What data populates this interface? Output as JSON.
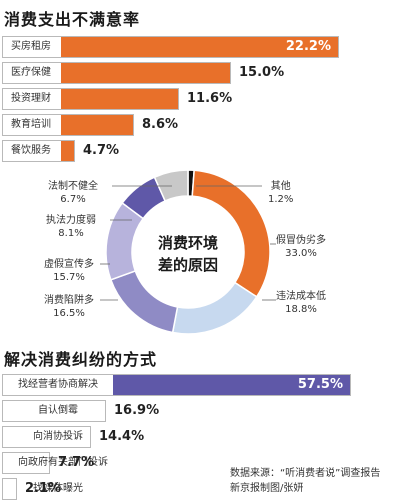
{
  "colors": {
    "orange": "#e8702a",
    "orange_light": "#f2a66f",
    "purple": "#5f58a8",
    "purple_light": "#8f8bc5"
  },
  "titles": {
    "top": "消费支出不满意率",
    "center_line1": "消费环境",
    "center_line2": "差的原因",
    "bottom": "解决消费纠纷的方式"
  },
  "source": {
    "line1": "数据来源：“听消费者说”调查报告",
    "line2": "新京报制图/张妍"
  },
  "chart_data": [
    {
      "type": "bar",
      "orientation": "horizontal",
      "title": "消费支出不满意率",
      "categories": [
        "买房租房",
        "医疗保健",
        "投资理财",
        "教育培训",
        "餐饮服务"
      ],
      "values": [
        22.2,
        15.0,
        11.6,
        8.6,
        4.7
      ],
      "labels": [
        "22.2%",
        "15.0%",
        "11.6%",
        "8.6%",
        "4.7%"
      ],
      "xlim": [
        0,
        23.5
      ]
    },
    {
      "type": "pie",
      "donut": true,
      "title": "消费环境差的原因",
      "slices": [
        {
          "name": "其他",
          "value": 1.2,
          "label": "1.2%"
        },
        {
          "name": "假冒伪劣多",
          "value": 33.0,
          "label": "33.0%"
        },
        {
          "name": "违法成本低",
          "value": 18.8,
          "label": "18.8%"
        },
        {
          "name": "消费陷阱多",
          "value": 16.5,
          "label": "16.5%"
        },
        {
          "name": "虚假宣传多",
          "value": 15.7,
          "label": "15.7%"
        },
        {
          "name": "执法力度弱",
          "value": 8.1,
          "label": "8.1%"
        },
        {
          "name": "法制不健全",
          "value": 6.7,
          "label": "6.7%"
        }
      ]
    },
    {
      "type": "bar",
      "orientation": "horizontal",
      "title": "解决消费纠纷的方式",
      "categories": [
        "找经营者协商解决",
        "自认倒霉",
        "向消协投诉",
        "向政府有关部门投诉",
        "找媒体曝光"
      ],
      "values": [
        57.5,
        16.9,
        14.4,
        7.7,
        2.1
      ],
      "labels": [
        "57.5%",
        "16.9%",
        "14.4%",
        "7.7%",
        "2.1%"
      ],
      "xlim": [
        0,
        63
      ]
    }
  ]
}
